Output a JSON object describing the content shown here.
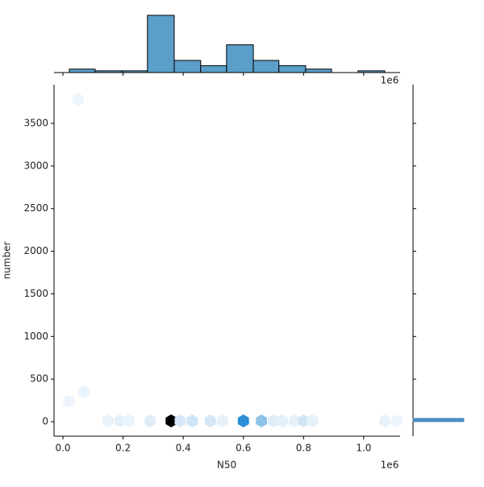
{
  "chart_data": [
    {
      "type": "hexbin",
      "x_label": "N50",
      "y_label": "number",
      "x_offset_label": "1e6",
      "x": [
        50000,
        20000,
        70000,
        150000,
        190000,
        220000,
        290000,
        360000,
        390000,
        430000,
        490000,
        530000,
        600000,
        660000,
        700000,
        730000,
        770000,
        800000,
        830000,
        1070000,
        1110000
      ],
      "y": [
        3780,
        240,
        350,
        10,
        10,
        10,
        10,
        10,
        10,
        10,
        10,
        10,
        10,
        10,
        10,
        10,
        10,
        10,
        10,
        10,
        10
      ],
      "counts": [
        1,
        1,
        2,
        2,
        4,
        2,
        5,
        100,
        8,
        10,
        9,
        3,
        60,
        30,
        5,
        4,
        3,
        10,
        3,
        3,
        1
      ],
      "xlim": [
        -29500,
        1121000
      ],
      "ylim": [
        -170,
        3954
      ],
      "xticks": [
        {
          "value": 0,
          "label": "0.0"
        },
        {
          "value": 200000,
          "label": "0.2"
        },
        {
          "value": 400000,
          "label": "0.4"
        },
        {
          "value": 600000,
          "label": "0.6"
        },
        {
          "value": 800000,
          "label": "0.8"
        },
        {
          "value": 1000000,
          "label": "1.0"
        }
      ],
      "yticks": [
        0,
        500,
        1000,
        1500,
        2000,
        2500,
        3000,
        3500
      ]
    },
    {
      "type": "histogram",
      "orientation": "vertical",
      "color": "#5a9ec9",
      "bins": [
        21400,
        107000,
        196000,
        281000,
        370000,
        458000,
        544000,
        633000,
        718000,
        807000,
        893000,
        981000,
        1070000
      ],
      "counts": [
        2,
        1,
        1,
        33,
        7,
        4,
        16,
        7,
        4,
        2,
        0,
        1
      ]
    },
    {
      "type": "histogram",
      "orientation": "horizontal",
      "color": "#4a8fc4",
      "bins": [
        0,
        40
      ],
      "counts": [
        67
      ]
    }
  ]
}
